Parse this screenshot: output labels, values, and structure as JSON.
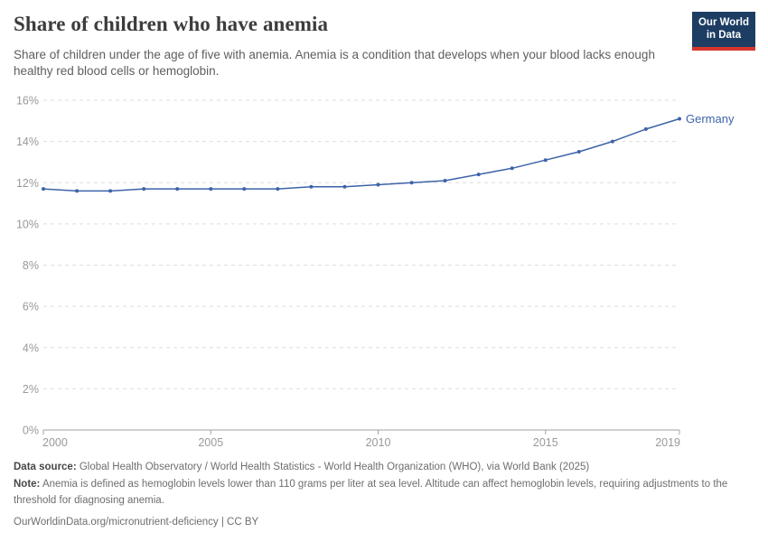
{
  "header": {
    "title": "Share of children who have anemia",
    "subtitle": "Share of children under the age of five with anemia. Anemia is a condition that develops when your blood lacks enough healthy red blood cells or hemoglobin.",
    "logo": {
      "line1": "Our World",
      "line2": "in Data",
      "bg_color": "#1d3d63",
      "accent_color": "#d8352e"
    }
  },
  "chart_data": {
    "type": "line",
    "title": "Share of children who have anemia",
    "xlabel": "",
    "ylabel": "",
    "x": [
      2000,
      2001,
      2002,
      2003,
      2004,
      2005,
      2006,
      2007,
      2008,
      2009,
      2010,
      2011,
      2012,
      2013,
      2014,
      2015,
      2016,
      2017,
      2018,
      2019
    ],
    "series": [
      {
        "name": "Germany",
        "color": "#3d63a9",
        "values": [
          11.7,
          11.6,
          11.6,
          11.7,
          11.7,
          11.7,
          11.7,
          11.7,
          11.8,
          11.8,
          11.9,
          12.0,
          12.1,
          12.4,
          12.7,
          13.1,
          13.5,
          14.0,
          14.6,
          15.1
        ]
      }
    ],
    "x_ticks": [
      2000,
      2005,
      2010,
      2015,
      2019
    ],
    "ylim": [
      0,
      16
    ],
    "y_tick_step": 2,
    "y_tick_suffix": "%",
    "grid": true,
    "legend_position": "end-of-line-label",
    "colors": {
      "gridline": "#dedede",
      "axis": "#a1a1a1",
      "tick_text": "#999999"
    }
  },
  "footer": {
    "data_source_label": "Data source:",
    "data_source_text": " Global Health Observatory / World Health Statistics - World Health Organization (WHO), via World Bank (2025)",
    "note_label": "Note:",
    "note_text": " Anemia is defined as hemoglobin levels lower than 110 grams per liter at sea level. Altitude can affect hemoglobin levels, requiring adjustments to the threshold for diagnosing anemia.",
    "link_text": "OurWorldinData.org/micronutrient-deficiency | CC BY"
  }
}
